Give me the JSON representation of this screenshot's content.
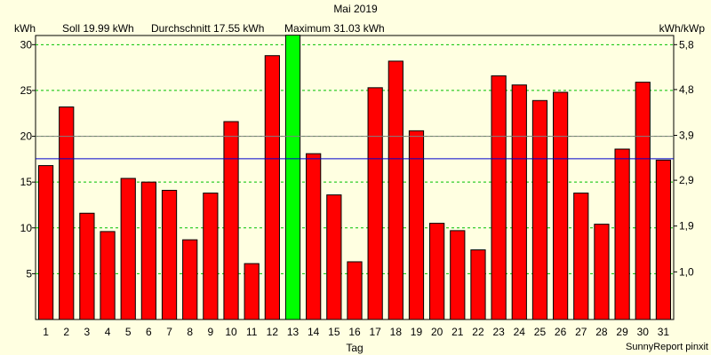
{
  "chart_data": {
    "type": "bar",
    "title": "Mai 2019",
    "xlabel": "Tag",
    "ylabel_left": "kWh",
    "ylabel_right": "kWh/kWp",
    "credit": "SunnyReport pinxit",
    "categories": [
      "1",
      "2",
      "3",
      "4",
      "5",
      "6",
      "7",
      "8",
      "9",
      "10",
      "11",
      "12",
      "13",
      "14",
      "15",
      "16",
      "17",
      "18",
      "19",
      "20",
      "21",
      "22",
      "23",
      "24",
      "25",
      "26",
      "27",
      "28",
      "29",
      "30",
      "31"
    ],
    "values": [
      16.8,
      23.2,
      11.6,
      9.6,
      15.4,
      15.0,
      14.1,
      8.7,
      13.8,
      21.6,
      6.1,
      28.8,
      31.03,
      18.1,
      13.6,
      6.3,
      25.3,
      28.2,
      20.6,
      10.5,
      9.7,
      7.6,
      26.6,
      25.6,
      23.9,
      24.8,
      13.8,
      10.4,
      18.6,
      25.9,
      17.4
    ],
    "highlight_index": 12,
    "ylim": [
      0,
      31
    ],
    "y_ticks": [
      5,
      10,
      15,
      20,
      25,
      30
    ],
    "right_ticks": [
      {
        "value": 5.2,
        "label": "1,0"
      },
      {
        "value": 10.2,
        "label": "1,9"
      },
      {
        "value": 15.2,
        "label": "2,9"
      },
      {
        "value": 20.1,
        "label": "3,9"
      },
      {
        "value": 25.1,
        "label": "4,8"
      },
      {
        "value": 30.0,
        "label": "5,8"
      }
    ],
    "reference_lines": {
      "soll": {
        "label": "Soll 19.99 kWh",
        "value": 19.99,
        "color": "#808080"
      },
      "durchschnitt": {
        "label": "Durchschnitt 17.55 kWh",
        "value": 17.55,
        "color": "#0000cc"
      },
      "maximum": {
        "label": "Maximum 31.03 kWh",
        "value": 31.03,
        "color": "#00cc00"
      }
    },
    "bar_color": "#ff0000",
    "highlight_color": "#00ff00",
    "grid": "dashed green",
    "grid_color": "#00c000"
  }
}
